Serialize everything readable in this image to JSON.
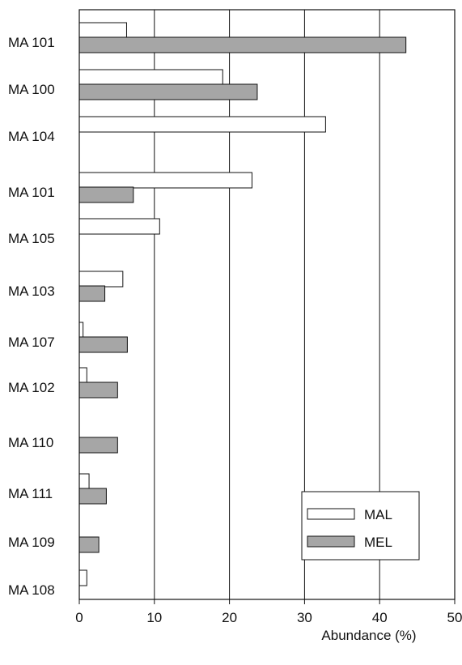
{
  "chart_data": {
    "type": "bar",
    "orientation": "horizontal",
    "title": "",
    "xlabel": "Abundance (%)",
    "ylabel": "",
    "xlim": [
      0,
      50
    ],
    "xticks": [
      "0",
      "10",
      "20",
      "30",
      "40",
      "50"
    ],
    "grid": "vertical lines at major ticks",
    "legend_position": "bottom-right",
    "categories": [
      "MA 101",
      "MA 100",
      "MA 104",
      "MA 101",
      "MA 105",
      "MA 103",
      "MA 107",
      "MA 102",
      "MA 110",
      "MA 111",
      "MA 109",
      "MA 108"
    ],
    "series": [
      {
        "name": "MAL",
        "color": "#ffffff",
        "values": [
          6.3,
          19.1,
          32.8,
          23.0,
          10.7,
          5.8,
          0.5,
          1.0,
          null,
          1.3,
          null,
          1.0
        ]
      },
      {
        "name": "MEL",
        "color": "#a6a6a6",
        "values": [
          43.5,
          23.7,
          null,
          7.2,
          null,
          3.4,
          6.4,
          5.1,
          5.1,
          3.6,
          2.6,
          null
        ]
      }
    ]
  }
}
